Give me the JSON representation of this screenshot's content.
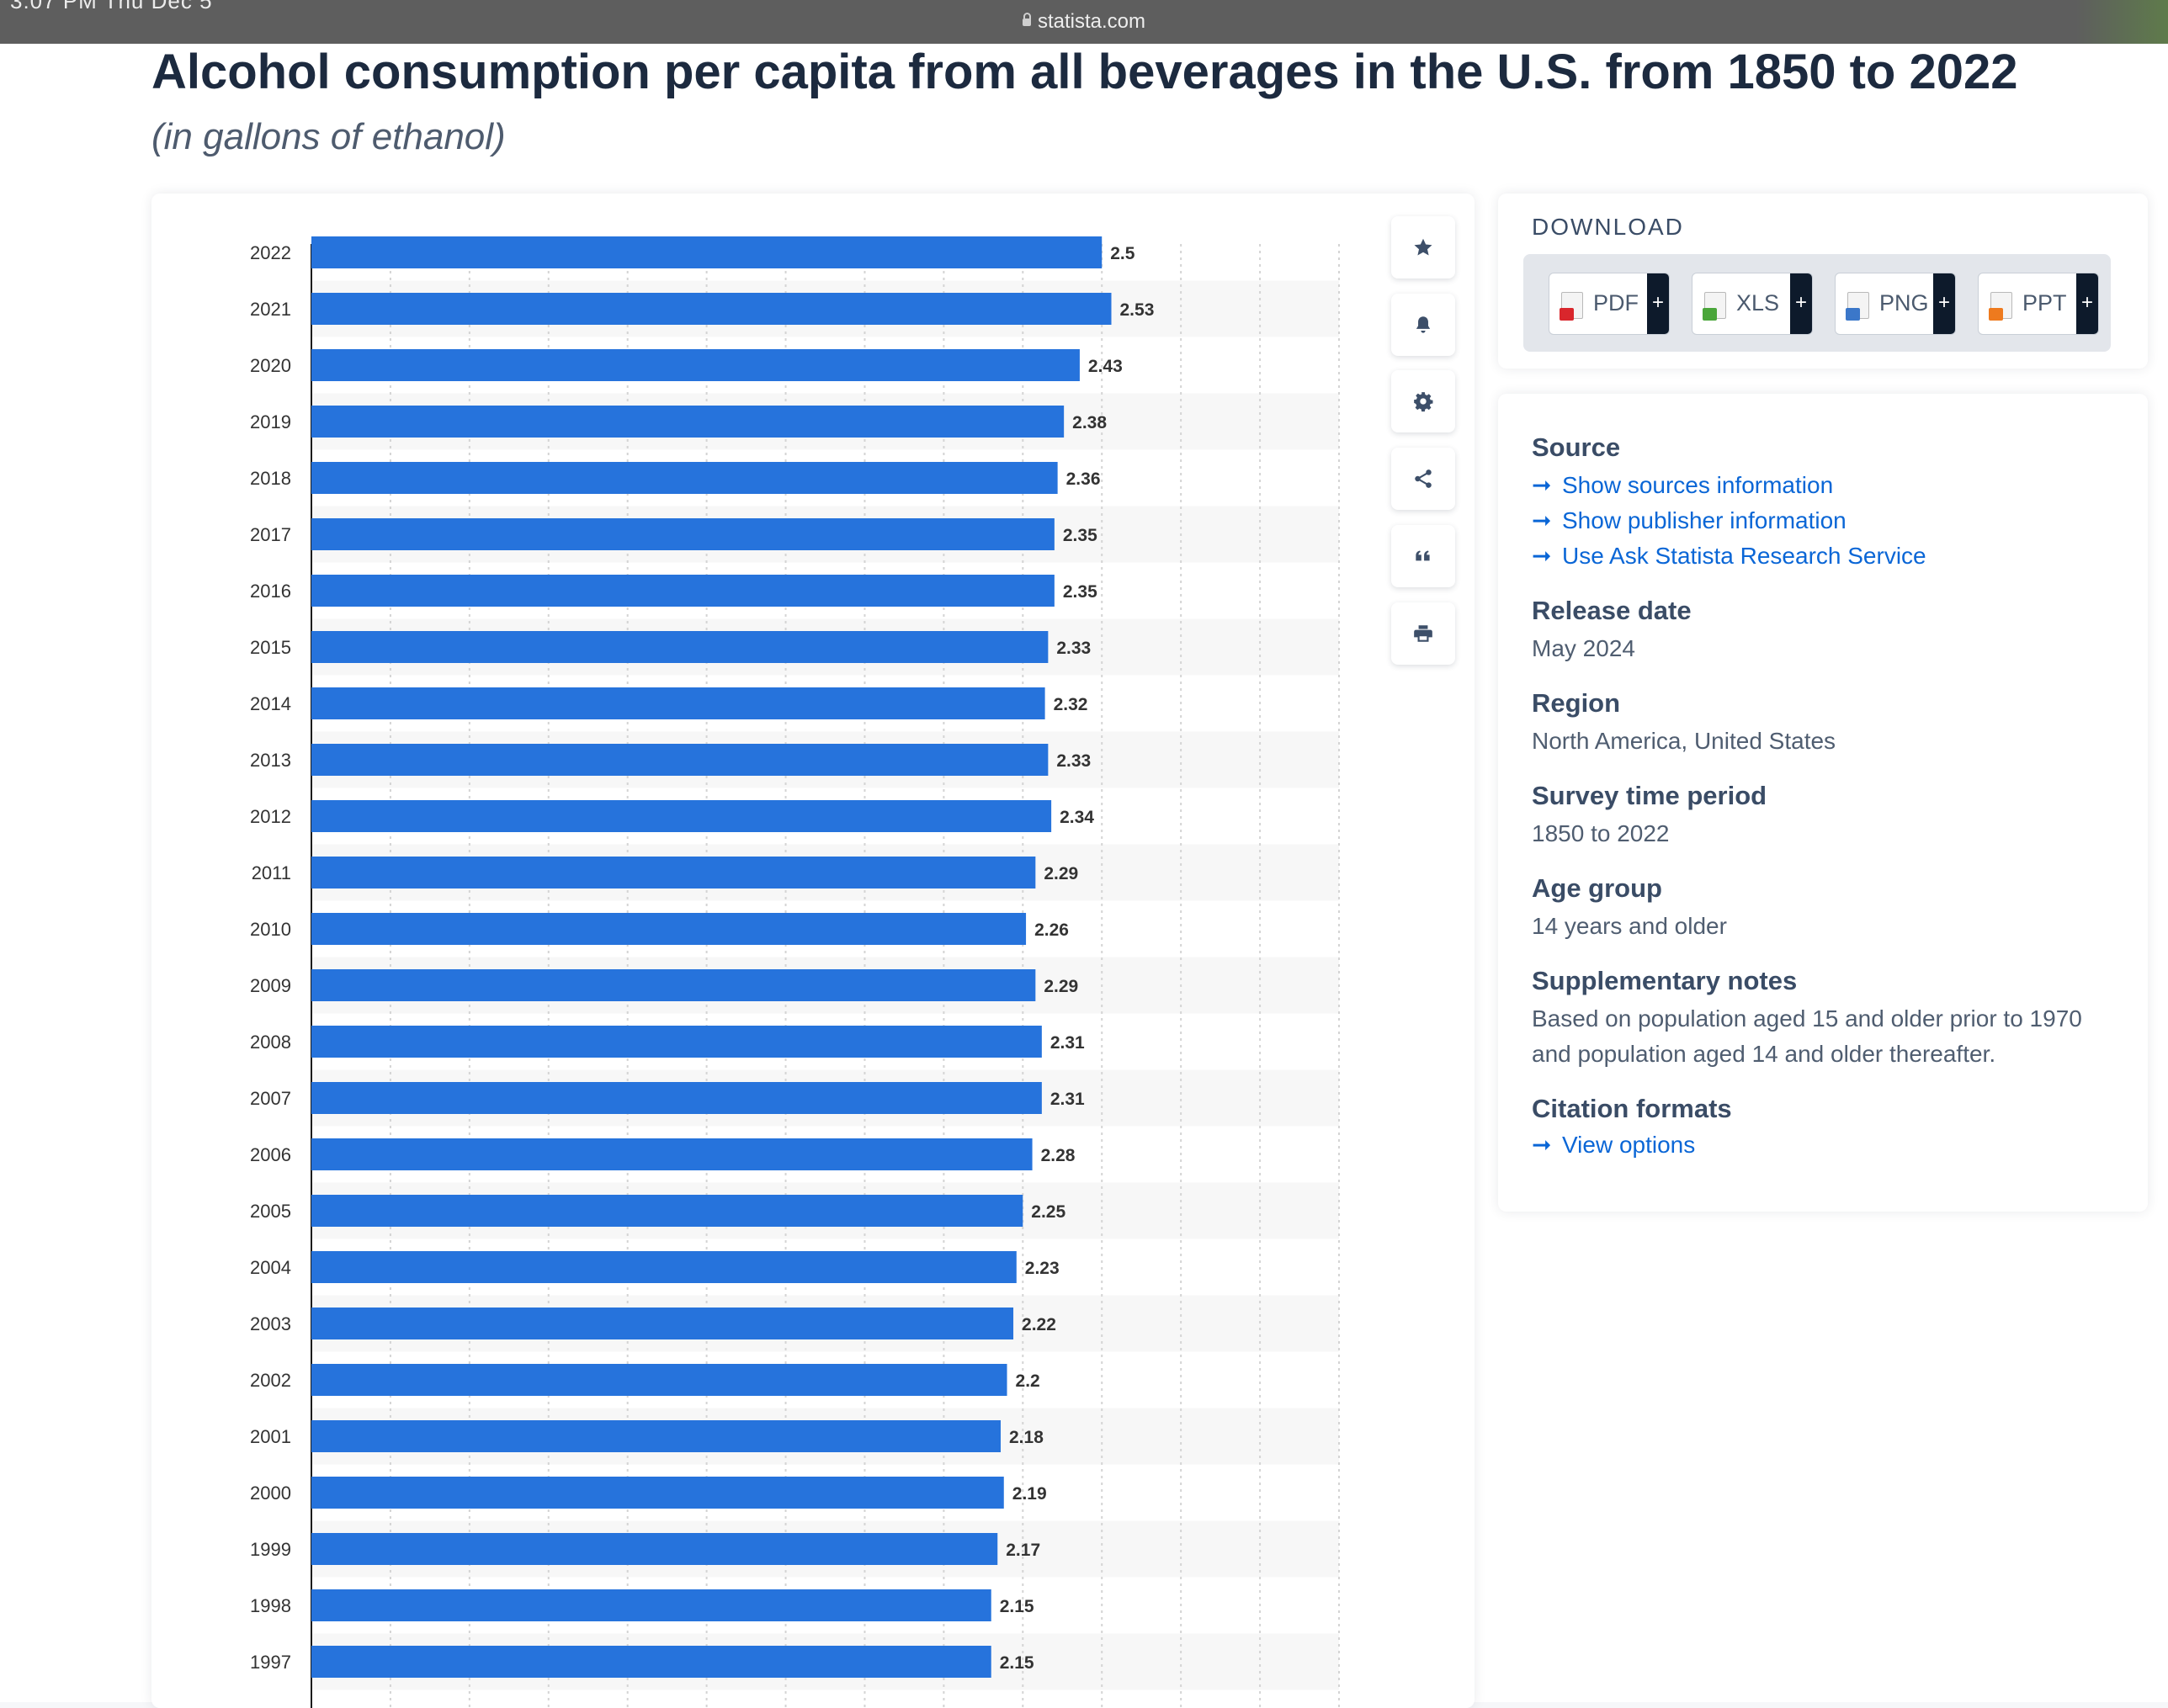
{
  "browser": {
    "status_text": "3:07 PM   Thu Dec 5",
    "url": "statista.com"
  },
  "page": {
    "title": "Alcohol consumption per capita from all beverages in the U.S. from 1850 to 2022",
    "subtitle": "(in gallons of ethanol)"
  },
  "toolbar": {
    "icons": [
      "star-icon",
      "bell-icon",
      "gear-icon",
      "share-icon",
      "quote-icon",
      "print-icon"
    ]
  },
  "download": {
    "title": "DOWNLOAD",
    "buttons": [
      {
        "label": "PDF",
        "plus": "+",
        "color": "#d9262c"
      },
      {
        "label": "XLS",
        "plus": "+",
        "color": "#4aa63a"
      },
      {
        "label": "PNG",
        "plus": "+",
        "color": "#3b77c9"
      },
      {
        "label": "PPT",
        "plus": "+",
        "color": "#ee7a1e"
      }
    ]
  },
  "meta": {
    "source_heading": "Source",
    "links": [
      {
        "arrow": "➞",
        "label": "Show sources information"
      },
      {
        "arrow": "➞",
        "label": "Show publisher information"
      },
      {
        "arrow": "➞",
        "label": "Use Ask Statista Research Service"
      }
    ],
    "release_heading": "Release date",
    "release_value": "May 2024",
    "region_heading": "Region",
    "region_value": "North America, United States",
    "survey_heading": "Survey time period",
    "survey_value": "1850 to 2022",
    "age_heading": "Age group",
    "age_value": "14 years and older",
    "notes_heading": "Supplementary notes",
    "notes_line1": "Based on population aged 15 and older prior to 1970",
    "notes_line2": "and population aged 14 and older thereafter.",
    "citation_heading": "Citation formats",
    "citation_link": {
      "arrow": "➞",
      "label": "View options"
    }
  },
  "chart_data": {
    "type": "bar",
    "orientation": "horizontal",
    "categories": [
      "2022",
      "2021",
      "2020",
      "2019",
      "2018",
      "2017",
      "2016",
      "2015",
      "2014",
      "2013",
      "2012",
      "2011",
      "2010",
      "2009",
      "2008",
      "2007",
      "2006",
      "2005",
      "2004",
      "2003",
      "2002",
      "2001",
      "2000",
      "1999",
      "1998",
      "1997"
    ],
    "values": [
      2.5,
      2.53,
      2.43,
      2.38,
      2.36,
      2.35,
      2.35,
      2.33,
      2.32,
      2.33,
      2.34,
      2.29,
      2.26,
      2.29,
      2.31,
      2.31,
      2.28,
      2.25,
      2.23,
      2.22,
      2.2,
      2.18,
      2.19,
      2.17,
      2.15,
      2.15
    ],
    "value_labels": [
      "2.5",
      "2.53",
      "2.43",
      "2.38",
      "2.36",
      "2.35",
      "2.35",
      "2.33",
      "2.32",
      "2.33",
      "2.34",
      "2.29",
      "2.26",
      "2.29",
      "2.31",
      "2.31",
      "2.28",
      "2.25",
      "2.23",
      "2.22",
      "2.2",
      "2.18",
      "2.19",
      "2.17",
      "2.15",
      "2.15"
    ],
    "xlim": [
      0,
      3.25
    ],
    "grid": true,
    "bar_color": "#2673dc",
    "title": "",
    "xlabel": "",
    "ylabel": ""
  }
}
